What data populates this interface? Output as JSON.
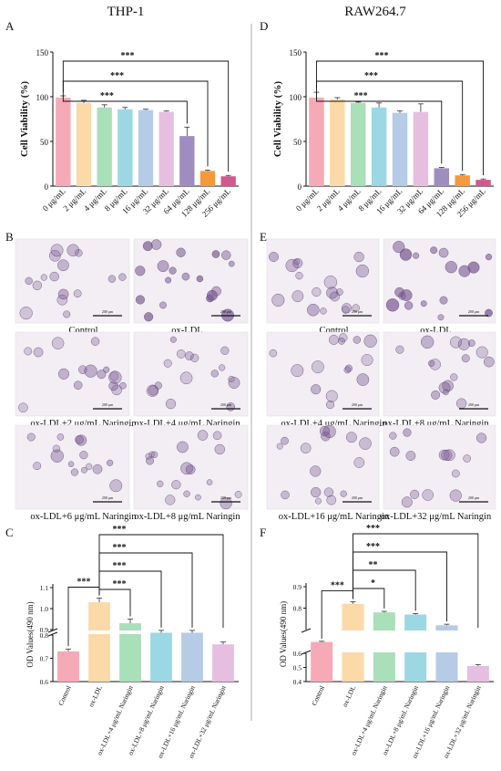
{
  "titles": {
    "left": "THP-1",
    "right": "RAW264.7"
  },
  "panel_letters": [
    "A",
    "B",
    "C",
    "D",
    "E",
    "F"
  ],
  "colors": {
    "conc": [
      "#f6a9b6",
      "#fbd9a8",
      "#a9dfb9",
      "#9cd8e3",
      "#b5cbe6",
      "#e6bfe0",
      "#9f8dc2",
      "#f49a3a",
      "#d3588c"
    ],
    "od": [
      "#f6a9b6",
      "#fbd9a8",
      "#a9dfb9",
      "#9cd8e3",
      "#b5cbe6",
      "#e6bfe0"
    ],
    "axis": "#111111",
    "image_bg": "#f2eef3",
    "cell": "#7a5a93"
  },
  "micrographs": {
    "thp1": [
      "Control",
      "ox-LDL",
      "ox-LDL+2 μg/mL Naringin",
      "ox-LDL+4 μg/mL Naringin",
      "ox-LDL+6 μg/mL Naringin",
      "ox-LDL+8 μg/mL Naringin"
    ],
    "raw": [
      "Control",
      "ox-LDL",
      "ox-LDL+4 μg/mL Naringin",
      "ox-LDL+8 μg/mL Naringin",
      "ox-LDL+16 μg/mL Naringin",
      "ox-LDL+32 μg/mL Naringin"
    ],
    "scale_bar": "200 μm"
  },
  "chart_data": [
    {
      "panel": "A",
      "type": "bar",
      "title": "THP-1",
      "ylabel": "Cell Viability (%)",
      "ylim": [
        0,
        150
      ],
      "yticks": [
        "0",
        "50",
        "100",
        "150"
      ],
      "categories": [
        "0 μg/mL",
        "2 μg/mL",
        "4 μg/mL",
        "8 μg/mL",
        "16 μg/mL",
        "32 μg/mL",
        "64 μg/mL",
        "128 μg/mL",
        "256 μg/mL"
      ],
      "values": [
        99,
        93,
        88,
        86,
        85,
        83,
        56,
        17,
        11
      ],
      "errors": [
        2,
        3,
        3,
        2,
        1,
        1,
        10,
        1,
        1
      ],
      "significance": [
        "***",
        "***",
        "***"
      ],
      "comparisons": [
        [
          0,
          6
        ],
        [
          0,
          7
        ],
        [
          0,
          8
        ]
      ]
    },
    {
      "panel": "D",
      "type": "bar",
      "title": "RAW264.7",
      "ylabel": "Cell Viability (%)",
      "ylim": [
        0,
        150
      ],
      "yticks": [
        "0",
        "50",
        "100",
        "150"
      ],
      "categories": [
        "0 μg/mL",
        "2 μg/mL",
        "4 μg/mL",
        "8 μg/mL",
        "16 μg/mL",
        "32 μg/mL",
        "64 μg/mL",
        "128 μg/mL",
        "256 μg/mL"
      ],
      "values": [
        99,
        97,
        93,
        88,
        82,
        83,
        20,
        12,
        7
      ],
      "errors": [
        6,
        2,
        1,
        5,
        2,
        9,
        1,
        1,
        1
      ],
      "significance": [
        "***",
        "***",
        "***"
      ],
      "comparisons": [
        [
          0,
          6
        ],
        [
          0,
          7
        ],
        [
          0,
          8
        ]
      ]
    },
    {
      "panel": "C",
      "type": "bar",
      "ylabel": "OD Values(490 nm)",
      "axis_break": true,
      "yticks": [
        "0.6",
        "0.7",
        "0.8",
        "0.9",
        "1.0",
        "1.1"
      ],
      "categories": [
        "Control",
        "ox-LDL",
        "ox-LDL+4 μg/mL Naringin",
        "ox-LDL+8 μg/mL Naringin",
        "ox-LDL+16 μg/mL Naringin",
        "ox-LDL+32 μg/mL Naringin"
      ],
      "values": [
        0.73,
        1.03,
        0.93,
        0.81,
        0.81,
        0.76
      ],
      "errors": [
        0.01,
        0.02,
        0.02,
        0.01,
        0.01,
        0.01
      ],
      "significance": [
        "***",
        "***",
        "***",
        "***",
        "***"
      ],
      "comparisons": [
        [
          0,
          1
        ],
        [
          1,
          2
        ],
        [
          1,
          3
        ],
        [
          1,
          4
        ],
        [
          1,
          5
        ]
      ]
    },
    {
      "panel": "F",
      "type": "bar",
      "ylabel": "OD Values(490 nm)",
      "axis_break": true,
      "yticks": [
        "0.4",
        "0.5",
        "0.6",
        "0.8",
        "0.9"
      ],
      "categories": [
        "Control",
        "ox-LDL",
        "ox-LDL+4 μg/mL Naringin",
        "ox-LDL+8 μg/mL Naringin",
        "ox-LDL+16 μg/mL Naringin",
        "ox-LDL+32 μg/mL Naringin"
      ],
      "values": [
        0.68,
        0.82,
        0.78,
        0.77,
        0.72,
        0.51
      ],
      "errors": [
        0.005,
        0.01,
        0.005,
        0.005,
        0.005,
        0.01
      ],
      "significance": [
        "***",
        "*",
        "**",
        "***",
        "***"
      ],
      "comparisons": [
        [
          0,
          1
        ],
        [
          1,
          2
        ],
        [
          1,
          3
        ],
        [
          1,
          4
        ],
        [
          1,
          5
        ]
      ]
    }
  ]
}
